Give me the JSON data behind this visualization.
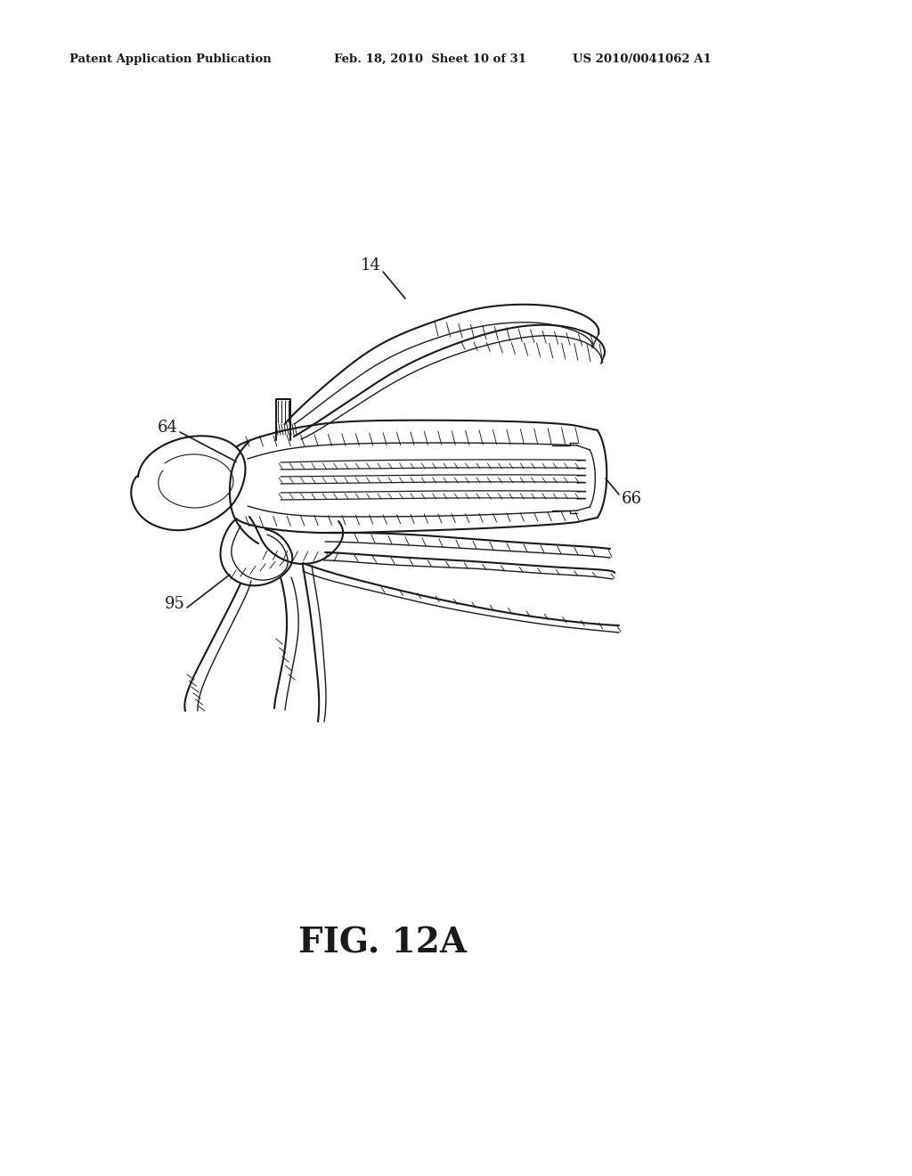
{
  "header_left": "Patent Application Publication",
  "header_mid": "Feb. 18, 2010  Sheet 10 of 31",
  "header_right": "US 2010/0041062 A1",
  "fig_label": "FIG. 12A",
  "ref_14": "14",
  "ref_64": "64",
  "ref_66": "66",
  "ref_95": "95",
  "bg_color": "#ffffff",
  "line_color": "#1a1a1a"
}
